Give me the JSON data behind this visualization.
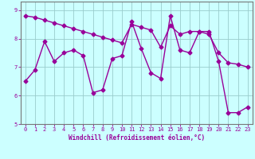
{
  "line1_x": [
    0,
    1,
    2,
    3,
    4,
    5,
    6,
    7,
    8,
    9,
    10,
    11,
    12,
    13,
    14,
    15,
    16,
    17,
    18,
    19,
    20,
    21,
    22,
    23
  ],
  "line1_y": [
    6.5,
    6.9,
    7.9,
    7.2,
    7.5,
    7.6,
    7.4,
    6.1,
    6.2,
    7.3,
    7.4,
    8.6,
    7.65,
    6.8,
    6.6,
    8.8,
    7.6,
    7.5,
    8.25,
    8.25,
    7.2,
    5.4,
    5.4,
    5.6
  ],
  "line2_x": [
    0,
    1,
    2,
    3,
    4,
    5,
    6,
    7,
    8,
    9,
    10,
    11,
    12,
    13,
    14,
    15,
    16,
    17,
    18,
    19,
    20,
    21,
    22,
    23
  ],
  "line2_y": [
    8.8,
    8.75,
    8.65,
    8.55,
    8.45,
    8.35,
    8.25,
    8.15,
    8.05,
    7.95,
    7.85,
    8.5,
    8.4,
    8.3,
    7.7,
    8.45,
    8.15,
    8.25,
    8.25,
    8.15,
    7.5,
    7.15,
    7.1,
    7.0
  ],
  "color": "#990099",
  "bg_color": "#ccffff",
  "grid_color": "#99cccc",
  "xlim": [
    -0.5,
    23.5
  ],
  "ylim": [
    5.0,
    9.3
  ],
  "yticks": [
    5,
    6,
    7,
    8,
    9
  ],
  "xticks": [
    0,
    1,
    2,
    3,
    4,
    5,
    6,
    7,
    8,
    9,
    10,
    11,
    12,
    13,
    14,
    15,
    16,
    17,
    18,
    19,
    20,
    21,
    22,
    23
  ],
  "xlabel": "Windchill (Refroidissement éolien,°C)",
  "marker": "D",
  "markersize": 2.5,
  "linewidth": 1.0
}
